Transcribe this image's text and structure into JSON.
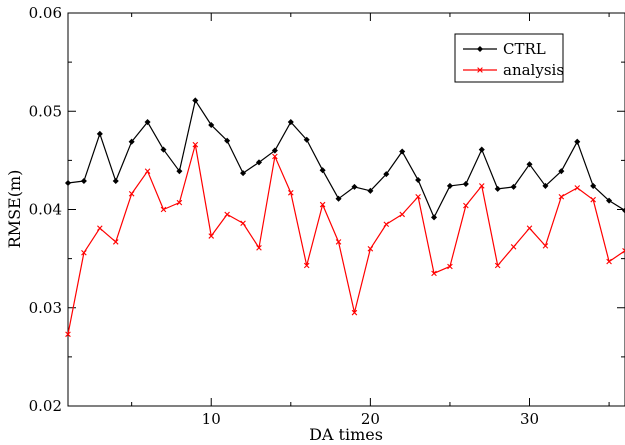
{
  "chart_data": {
    "type": "line",
    "title": "",
    "xlabel": "DA times",
    "ylabel": "RMSE(m)",
    "xlim": [
      1,
      36
    ],
    "ylim": [
      0.02,
      0.06
    ],
    "x_ticks": [
      10,
      20,
      30
    ],
    "y_ticks": [
      0.02,
      0.03,
      0.04,
      0.05,
      0.06
    ],
    "x_tick_labels": [
      "10",
      "20",
      "30"
    ],
    "y_tick_labels": [
      "0.02",
      "0.03",
      "0.04",
      "0.05",
      "0.06"
    ],
    "grid": false,
    "legend_position": "top-right",
    "x": [
      1,
      2,
      3,
      4,
      5,
      6,
      7,
      8,
      9,
      10,
      11,
      12,
      13,
      14,
      15,
      16,
      17,
      18,
      19,
      20,
      21,
      22,
      23,
      24,
      25,
      26,
      27,
      28,
      29,
      30,
      31,
      32,
      33,
      34,
      35,
      36
    ],
    "series": [
      {
        "name": "CTRL",
        "color": "#000000",
        "marker": "diamond",
        "values": [
          0.0427,
          0.0429,
          0.0477,
          0.0429,
          0.0469,
          0.0489,
          0.0461,
          0.0439,
          0.0511,
          0.0486,
          0.047,
          0.0437,
          0.0448,
          0.046,
          0.0489,
          0.0471,
          0.044,
          0.0411,
          0.0423,
          0.0419,
          0.0436,
          0.0459,
          0.043,
          0.0392,
          0.0424,
          0.0426,
          0.0461,
          0.0421,
          0.0423,
          0.0446,
          0.0424,
          0.0439,
          0.0469,
          0.0424,
          0.0409,
          0.0399
        ]
      },
      {
        "name": "analysis",
        "color": "#ff0000",
        "marker": "x",
        "values": [
          0.0273,
          0.0356,
          0.0381,
          0.0367,
          0.0416,
          0.0439,
          0.04,
          0.0407,
          0.0466,
          0.0373,
          0.0395,
          0.0386,
          0.0361,
          0.0454,
          0.0417,
          0.0343,
          0.0405,
          0.0367,
          0.0295,
          0.036,
          0.0385,
          0.0395,
          0.0413,
          0.0335,
          0.0342,
          0.0404,
          0.0424,
          0.0343,
          0.0362,
          0.0381,
          0.0363,
          0.0413,
          0.0422,
          0.041,
          0.0347,
          0.0358
        ]
      }
    ]
  }
}
